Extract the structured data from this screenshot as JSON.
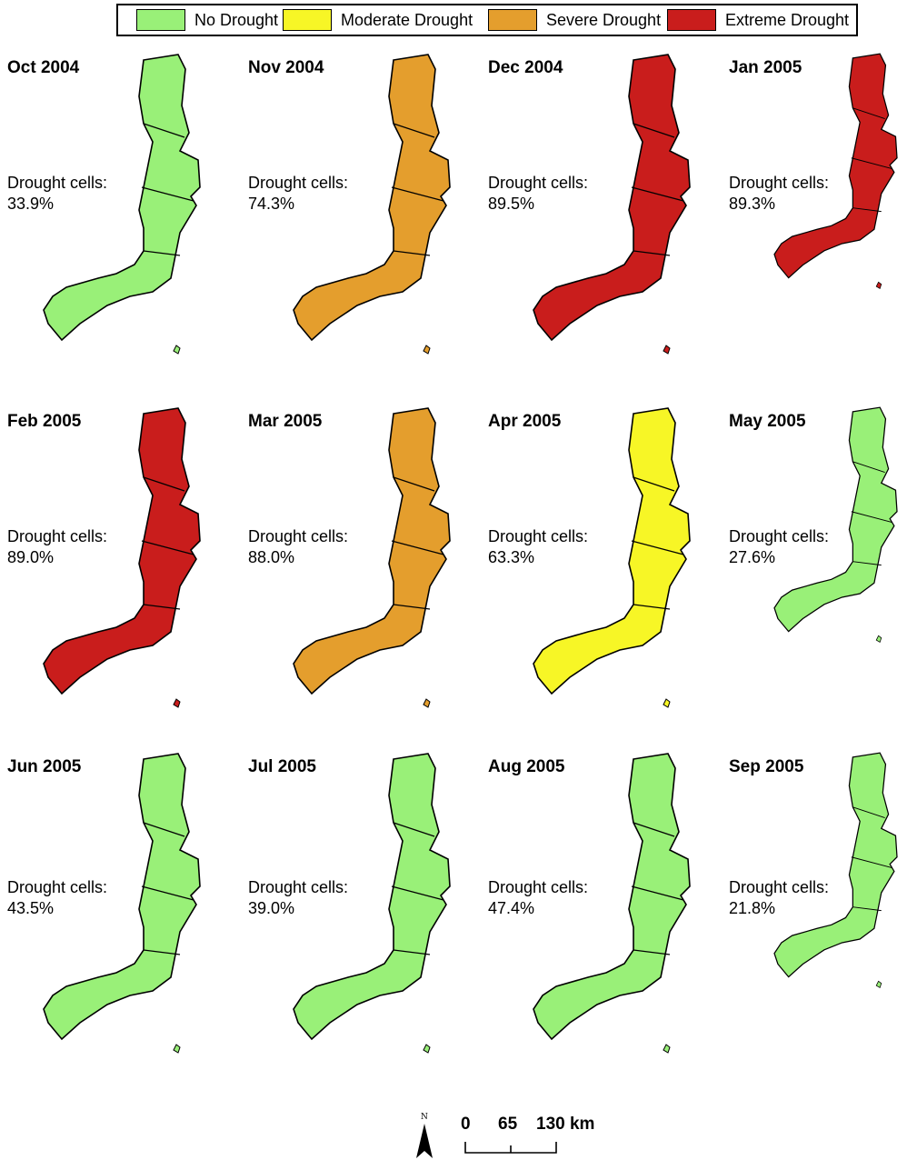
{
  "legend": {
    "items": [
      {
        "label": "No Drought",
        "color": "#99f078"
      },
      {
        "label": "Moderate Drought",
        "color": "#f7f626"
      },
      {
        "label": "Severe Drought",
        "color": "#e49e2d"
      },
      {
        "label": "Extreme Drought",
        "color": "#c91d1c"
      }
    ]
  },
  "drought_label": "Drought cells:",
  "panels": [
    {
      "title": "Oct 2004",
      "value": "33.9%",
      "fill": "none"
    },
    {
      "title": "Nov 2004",
      "value": "74.3%",
      "fill": "severe"
    },
    {
      "title": "Dec 2004",
      "value": "89.5%",
      "fill": "extreme"
    },
    {
      "title": "Jan 2005",
      "value": "89.3%",
      "fill": "extreme"
    },
    {
      "title": "Feb 2005",
      "value": "89.0%",
      "fill": "extreme"
    },
    {
      "title": "Mar 2005",
      "value": "88.0%",
      "fill": "severe"
    },
    {
      "title": "Apr 2005",
      "value": "63.3%",
      "fill": "moderate"
    },
    {
      "title": "May 2005",
      "value": "27.6%",
      "fill": "none"
    },
    {
      "title": "Jun 2005",
      "value": "43.5%",
      "fill": "none"
    },
    {
      "title": "Jul 2005",
      "value": "39.0%",
      "fill": "none"
    },
    {
      "title": "Aug 2005",
      "value": "47.4%",
      "fill": "none"
    },
    {
      "title": "Sep 2005",
      "value": "21.8%",
      "fill": "none"
    }
  ],
  "scale_bar": {
    "labels": [
      "0",
      "65",
      "130 km"
    ]
  },
  "north_arrow": {
    "label": "N"
  }
}
